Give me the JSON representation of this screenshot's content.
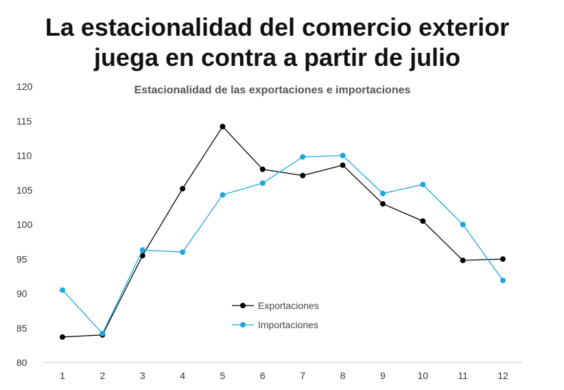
{
  "headline": {
    "line1": "La estacionalidad del comercio exterior",
    "line2": "juega en contra a partir de julio"
  },
  "chart_data": {
    "type": "line",
    "title": "Estacionalidad de las exportaciones e importaciones",
    "xlabel": "",
    "ylabel": "",
    "x": [
      1,
      2,
      3,
      4,
      5,
      6,
      7,
      8,
      9,
      10,
      11,
      12
    ],
    "x_tick_labels": [
      "1",
      "2",
      "3",
      "4",
      "5",
      "6",
      "7",
      "8",
      "9",
      "10",
      "11",
      "12"
    ],
    "ylim": [
      80,
      120
    ],
    "y_ticks": [
      80,
      85,
      90,
      95,
      100,
      105,
      110,
      115,
      120
    ],
    "y_tick_labels": [
      "80",
      "85",
      "90",
      "95",
      "100",
      "105",
      "110",
      "115",
      "120"
    ],
    "grid": false,
    "legend_position": "center",
    "series": [
      {
        "name": "Exportaciones",
        "color": "#000000",
        "values": [
          83.7,
          84.0,
          95.5,
          105.2,
          114.2,
          108.0,
          107.1,
          108.6,
          103.0,
          100.5,
          94.8,
          95.0
        ]
      },
      {
        "name": "Importaciones",
        "color": "#1AA7DE",
        "values": [
          90.5,
          84.2,
          96.3,
          96.0,
          104.3,
          106.0,
          109.8,
          110.0,
          104.5,
          105.8,
          100.0,
          91.9
        ]
      }
    ]
  }
}
